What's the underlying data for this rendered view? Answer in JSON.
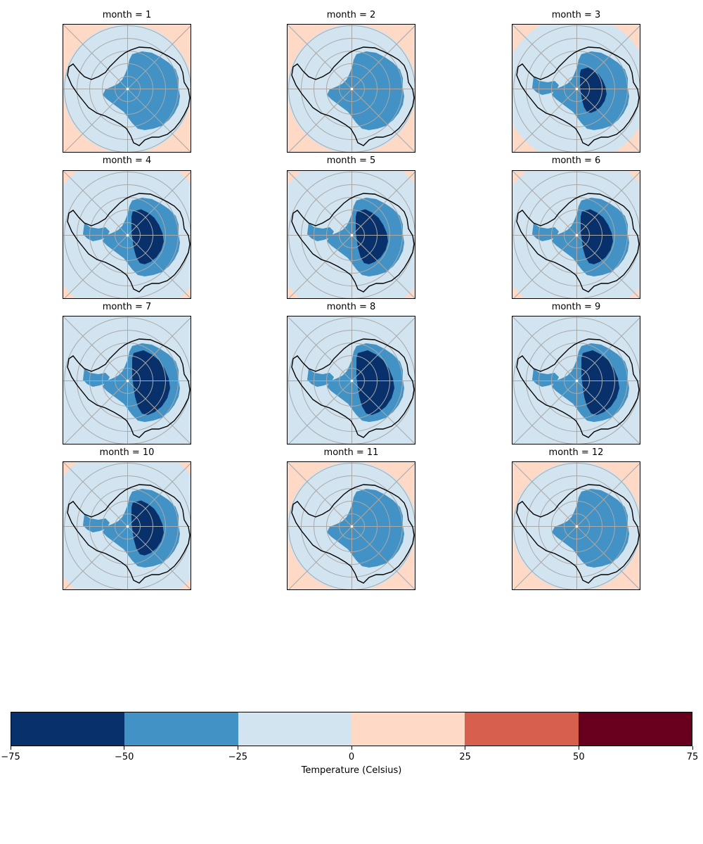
{
  "figure": {
    "panels": [
      {
        "title": "month = 1",
        "cold_level": 0
      },
      {
        "title": "month = 2",
        "cold_level": 0
      },
      {
        "title": "month = 3",
        "cold_level": 1
      },
      {
        "title": "month = 4",
        "cold_level": 2
      },
      {
        "title": "month = 5",
        "cold_level": 2
      },
      {
        "title": "month = 6",
        "cold_level": 2
      },
      {
        "title": "month = 7",
        "cold_level": 3
      },
      {
        "title": "month = 8",
        "cold_level": 3
      },
      {
        "title": "month = 9",
        "cold_level": 3
      },
      {
        "title": "month = 10",
        "cold_level": 2
      },
      {
        "title": "month = 11",
        "cold_level": 0
      },
      {
        "title": "month = 12",
        "cold_level": 0
      }
    ],
    "colorbar": {
      "label": "Temperature (Celsius)",
      "ticks": [
        "−75",
        "−50",
        "−25",
        "0",
        "25",
        "50",
        "75"
      ],
      "colors": [
        "#08306b",
        "#4292c6",
        "#d1e4f0",
        "#fdd9c6",
        "#d6604d",
        "#67001f"
      ]
    }
  },
  "chart_data": {
    "type": "heatmap",
    "title": "",
    "facet_variable": "month",
    "facets": [
      "month = 1",
      "month = 2",
      "month = 3",
      "month = 4",
      "month = 5",
      "month = 6",
      "month = 7",
      "month = 8",
      "month = 9",
      "month = 10",
      "month = 11",
      "month = 12"
    ],
    "colorbar_label": "Temperature (Celsius)",
    "levels": [
      -75,
      -50,
      -25,
      0,
      25,
      50,
      75
    ],
    "vmin": -75,
    "vmax": 75,
    "colormap": "RdBu_r",
    "projection": "South Polar Stereographic",
    "colors": [
      "#08306b",
      "#4292c6",
      "#d1e4f0",
      "#fdd9c6",
      "#d6604d",
      "#67001f"
    ]
  }
}
